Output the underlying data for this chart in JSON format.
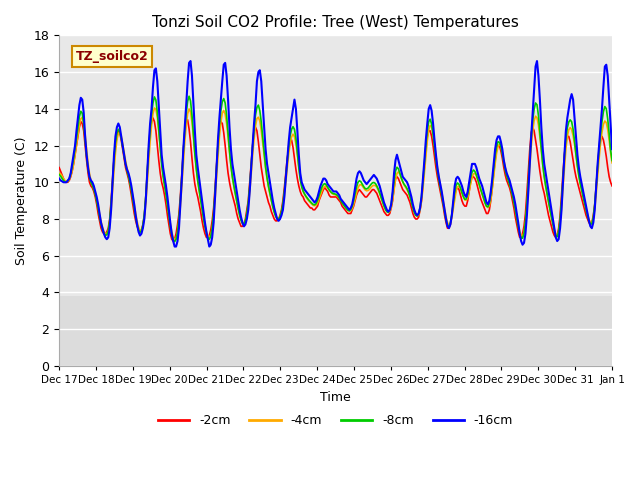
{
  "title": "Tonzi Soil CO2 Profile: Tree (West) Temperatures",
  "xlabel": "Time",
  "ylabel": "Soil Temperature (C)",
  "legend_label": "TZ_soilco2",
  "series_labels": [
    "-2cm",
    "-4cm",
    "-8cm",
    "-16cm"
  ],
  "series_colors": [
    "#ff0000",
    "#ffaa00",
    "#00cc00",
    "#0000ff"
  ],
  "ylim": [
    0,
    18
  ],
  "yticks": [
    0,
    2,
    4,
    6,
    8,
    10,
    12,
    14,
    16,
    18
  ],
  "x_tick_labels": [
    "Dec 17",
    "Dec 18",
    "Dec 19",
    "Dec 20",
    "Dec 21",
    "Dec 22",
    "Dec 23",
    "Dec 24",
    "Dec 25",
    "Dec 26",
    "Dec 27",
    "Dec 28",
    "Dec 29",
    "Dec 30",
    "Dec 31",
    "Jan 1"
  ],
  "blue": [
    10.2,
    10.1,
    10.05,
    10.0,
    10.0,
    10.0,
    10.1,
    10.2,
    10.5,
    11.0,
    11.5,
    12.0,
    12.8,
    13.5,
    14.2,
    14.6,
    14.5,
    13.8,
    12.5,
    11.5,
    10.8,
    10.3,
    10.1,
    10.0,
    9.8,
    9.5,
    9.2,
    8.8,
    8.3,
    7.8,
    7.5,
    7.2,
    7.0,
    6.9,
    7.0,
    7.5,
    8.5,
    10.0,
    11.5,
    12.5,
    13.0,
    13.2,
    13.0,
    12.5,
    12.0,
    11.5,
    11.0,
    10.7,
    10.5,
    10.2,
    9.8,
    9.3,
    8.8,
    8.2,
    7.7,
    7.3,
    7.1,
    7.2,
    7.5,
    8.0,
    9.0,
    10.5,
    12.0,
    13.2,
    14.0,
    15.2,
    16.1,
    16.2,
    15.5,
    14.2,
    12.8,
    11.5,
    10.8,
    10.3,
    9.8,
    9.2,
    8.5,
    7.8,
    7.2,
    6.8,
    6.5,
    6.5,
    6.8,
    7.5,
    8.8,
    10.2,
    11.8,
    13.0,
    14.2,
    15.5,
    16.5,
    16.6,
    15.8,
    14.3,
    12.8,
    11.5,
    10.8,
    10.2,
    9.6,
    9.0,
    8.4,
    7.8,
    7.3,
    6.9,
    6.5,
    6.6,
    7.0,
    7.8,
    9.2,
    10.8,
    12.3,
    13.5,
    14.5,
    15.5,
    16.4,
    16.5,
    15.8,
    14.5,
    13.0,
    11.8,
    11.0,
    10.5,
    10.0,
    9.5,
    9.0,
    8.5,
    8.1,
    7.8,
    7.6,
    7.7,
    8.0,
    8.5,
    9.5,
    10.8,
    12.0,
    13.2,
    14.2,
    15.5,
    16.0,
    16.1,
    15.5,
    14.2,
    13.0,
    11.8,
    11.0,
    10.5,
    10.0,
    9.5,
    9.0,
    8.6,
    8.3,
    8.0,
    7.9,
    8.0,
    8.2,
    8.5,
    9.2,
    10.2,
    11.2,
    12.2,
    13.0,
    13.5,
    14.0,
    14.5,
    14.0,
    12.8,
    11.5,
    10.5,
    10.0,
    9.8,
    9.6,
    9.5,
    9.4,
    9.3,
    9.2,
    9.1,
    9.0,
    8.9,
    9.0,
    9.2,
    9.5,
    9.8,
    10.0,
    10.2,
    10.2,
    10.1,
    9.9,
    9.8,
    9.7,
    9.6,
    9.5,
    9.5,
    9.5,
    9.4,
    9.3,
    9.1,
    9.0,
    8.9,
    8.8,
    8.7,
    8.6,
    8.5,
    8.6,
    8.8,
    9.2,
    9.7,
    10.2,
    10.5,
    10.6,
    10.5,
    10.3,
    10.1,
    10.0,
    9.9,
    10.0,
    10.1,
    10.2,
    10.3,
    10.4,
    10.3,
    10.2,
    10.0,
    9.8,
    9.5,
    9.2,
    8.9,
    8.7,
    8.5,
    8.4,
    8.5,
    8.8,
    9.5,
    10.5,
    11.2,
    11.5,
    11.2,
    10.9,
    10.6,
    10.3,
    10.2,
    10.1,
    10.0,
    9.8,
    9.5,
    9.2,
    8.8,
    8.5,
    8.3,
    8.2,
    8.3,
    8.6,
    9.2,
    10.2,
    11.2,
    12.3,
    13.2,
    14.0,
    14.2,
    13.9,
    13.2,
    12.3,
    11.5,
    10.8,
    10.3,
    9.9,
    9.5,
    9.0,
    8.5,
    8.0,
    7.6,
    7.5,
    7.7,
    8.2,
    9.0,
    9.8,
    10.2,
    10.3,
    10.2,
    10.0,
    9.8,
    9.5,
    9.3,
    9.2,
    9.5,
    10.0,
    10.5,
    11.0,
    11.0,
    11.0,
    10.8,
    10.5,
    10.2,
    10.0,
    9.8,
    9.5,
    9.2,
    8.9,
    8.8,
    9.0,
    9.5,
    10.2,
    11.0,
    11.8,
    12.3,
    12.5,
    12.5,
    12.2,
    11.8,
    11.2,
    10.8,
    10.5,
    10.3,
    10.1,
    9.8,
    9.5,
    9.2,
    8.8,
    8.3,
    7.8,
    7.2,
    6.8,
    6.6,
    6.7,
    7.2,
    8.2,
    9.5,
    11.0,
    12.5,
    13.8,
    15.0,
    16.3,
    16.6,
    15.8,
    14.5,
    13.0,
    11.8,
    11.0,
    10.5,
    10.0,
    9.5,
    9.0,
    8.5,
    8.0,
    7.5,
    7.0,
    6.8,
    6.9,
    7.5,
    8.5,
    10.0,
    11.5,
    12.8,
    13.5,
    14.0,
    14.5,
    14.8,
    14.5,
    13.5,
    12.5,
    11.5,
    10.8,
    10.3,
    9.9,
    9.5,
    9.1,
    8.7,
    8.3,
    7.9,
    7.6,
    7.5,
    7.8,
    8.5,
    9.8,
    11.0,
    12.0,
    13.0,
    14.0,
    15.2,
    16.3,
    16.4,
    15.8,
    14.5,
    13.2,
    11.8
  ],
  "red": [
    10.8,
    10.6,
    10.4,
    10.2,
    10.0,
    10.0,
    10.0,
    10.1,
    10.3,
    10.6,
    11.0,
    11.5,
    12.0,
    12.5,
    13.0,
    13.3,
    13.2,
    12.8,
    12.0,
    11.2,
    10.5,
    10.0,
    9.8,
    9.7,
    9.5,
    9.2,
    8.8,
    8.3,
    7.9,
    7.5,
    7.3,
    7.2,
    7.2,
    7.3,
    7.5,
    8.0,
    9.0,
    10.2,
    11.3,
    12.0,
    12.5,
    12.8,
    12.7,
    12.3,
    11.8,
    11.3,
    10.8,
    10.5,
    10.2,
    9.8,
    9.3,
    8.8,
    8.3,
    7.9,
    7.6,
    7.4,
    7.3,
    7.4,
    7.7,
    8.2,
    9.2,
    10.5,
    11.7,
    12.7,
    13.3,
    13.5,
    13.3,
    12.8,
    12.0,
    11.2,
    10.5,
    10.0,
    9.7,
    9.3,
    8.8,
    8.2,
    7.7,
    7.2,
    6.9,
    6.8,
    6.9,
    7.2,
    7.7,
    8.3,
    9.3,
    10.5,
    11.7,
    12.7,
    13.3,
    13.4,
    12.9,
    12.2,
    11.3,
    10.5,
    9.9,
    9.5,
    9.2,
    8.8,
    8.4,
    7.9,
    7.5,
    7.2,
    7.0,
    7.0,
    7.1,
    7.4,
    7.9,
    8.6,
    9.7,
    10.9,
    12.0,
    12.9,
    13.3,
    13.2,
    12.7,
    12.0,
    11.2,
    10.5,
    10.0,
    9.6,
    9.3,
    9.0,
    8.7,
    8.3,
    8.0,
    7.8,
    7.6,
    7.6,
    7.7,
    8.0,
    8.5,
    9.0,
    10.0,
    11.0,
    12.0,
    12.8,
    13.0,
    12.8,
    12.2,
    11.5,
    10.8,
    10.3,
    9.8,
    9.5,
    9.2,
    8.9,
    8.7,
    8.4,
    8.2,
    8.0,
    7.9,
    7.9,
    8.0,
    8.2,
    8.5,
    9.0,
    9.7,
    10.5,
    11.3,
    11.8,
    12.2,
    12.3,
    11.9,
    11.3,
    10.7,
    10.2,
    9.8,
    9.5,
    9.3,
    9.2,
    9.0,
    8.9,
    8.8,
    8.7,
    8.6,
    8.6,
    8.5,
    8.5,
    8.6,
    8.7,
    9.0,
    9.2,
    9.4,
    9.6,
    9.7,
    9.6,
    9.5,
    9.3,
    9.2,
    9.2,
    9.2,
    9.2,
    9.2,
    9.1,
    9.0,
    8.9,
    8.7,
    8.6,
    8.5,
    8.4,
    8.3,
    8.3,
    8.3,
    8.5,
    8.7,
    9.0,
    9.3,
    9.5,
    9.6,
    9.5,
    9.4,
    9.3,
    9.2,
    9.2,
    9.3,
    9.4,
    9.5,
    9.6,
    9.6,
    9.5,
    9.4,
    9.2,
    9.0,
    8.8,
    8.6,
    8.4,
    8.3,
    8.2,
    8.2,
    8.3,
    8.6,
    9.0,
    9.7,
    10.2,
    10.3,
    10.2,
    10.0,
    9.8,
    9.6,
    9.5,
    9.4,
    9.3,
    9.1,
    8.9,
    8.6,
    8.3,
    8.1,
    8.0,
    8.0,
    8.1,
    8.5,
    9.0,
    9.9,
    10.8,
    11.8,
    12.5,
    12.8,
    12.8,
    12.5,
    12.0,
    11.4,
    10.8,
    10.3,
    9.9,
    9.5,
    9.1,
    8.7,
    8.2,
    7.8,
    7.5,
    7.5,
    7.7,
    8.2,
    8.8,
    9.3,
    9.6,
    9.7,
    9.6,
    9.3,
    9.0,
    8.8,
    8.7,
    8.7,
    9.0,
    9.5,
    10.0,
    10.3,
    10.3,
    10.2,
    10.0,
    9.7,
    9.4,
    9.1,
    8.9,
    8.7,
    8.5,
    8.3,
    8.3,
    8.5,
    9.0,
    9.7,
    10.5,
    11.2,
    11.8,
    12.0,
    12.0,
    11.7,
    11.3,
    10.8,
    10.4,
    10.1,
    9.9,
    9.7,
    9.4,
    9.0,
    8.6,
    8.1,
    7.7,
    7.3,
    7.0,
    7.0,
    7.2,
    7.6,
    8.3,
    9.4,
    10.6,
    11.8,
    12.7,
    13.0,
    12.8,
    12.3,
    11.8,
    11.2,
    10.6,
    10.1,
    9.7,
    9.4,
    9.0,
    8.6,
    8.2,
    7.9,
    7.6,
    7.3,
    7.1,
    7.0,
    7.1,
    7.5,
    8.2,
    9.3,
    10.5,
    11.5,
    12.2,
    12.5,
    12.5,
    12.2,
    11.7,
    11.2,
    10.7,
    10.3,
    10.0,
    9.7,
    9.4,
    9.1,
    8.8,
    8.5,
    8.2,
    8.0,
    7.8,
    7.7,
    7.8,
    8.2,
    8.8,
    9.8,
    10.8,
    11.7,
    12.3,
    12.5,
    12.3,
    11.9,
    11.4,
    10.8,
    10.3,
    10.0,
    9.8
  ]
}
